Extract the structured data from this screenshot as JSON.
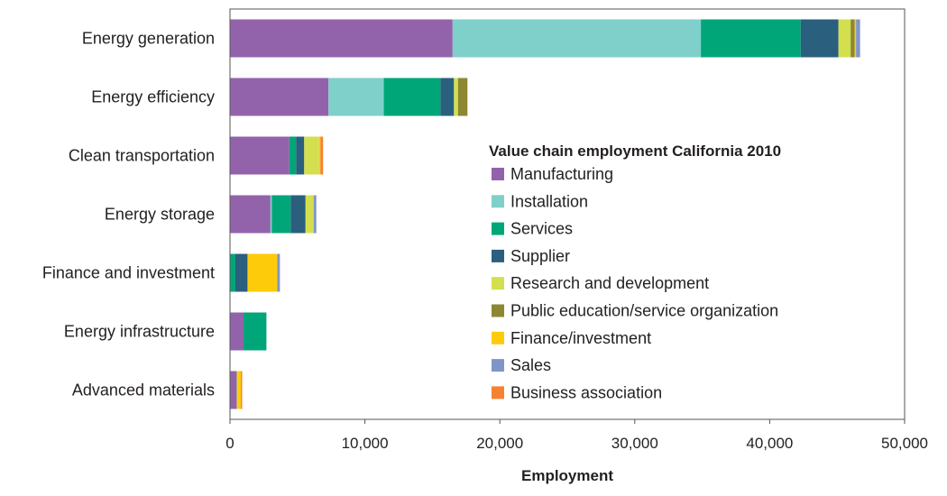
{
  "chart_data": {
    "type": "bar",
    "orientation": "horizontal",
    "stacked": true,
    "categories": [
      "Energy generation",
      "Energy efficiency",
      "Clean transportation",
      "Energy storage",
      "Finance and investment",
      "Energy infrastructure",
      "Advanced materials"
    ],
    "series": [
      {
        "name": "Manufacturing",
        "color": "#9263ab",
        "values": [
          16500,
          7300,
          4400,
          3000,
          0,
          1000,
          500
        ]
      },
      {
        "name": "Installation",
        "color": "#7fcfca",
        "values": [
          18400,
          4100,
          0,
          100,
          0,
          0,
          0
        ]
      },
      {
        "name": "Services",
        "color": "#00a678",
        "values": [
          7400,
          4200,
          500,
          1400,
          400,
          1700,
          0
        ]
      },
      {
        "name": "Supplier",
        "color": "#2b5f7e",
        "values": [
          2800,
          1000,
          600,
          1100,
          900,
          0,
          0
        ]
      },
      {
        "name": "Research and development",
        "color": "#d3df4e",
        "values": [
          900,
          300,
          1100,
          600,
          0,
          0,
          100
        ]
      },
      {
        "name": "Public education/service organization",
        "color": "#8d8732",
        "values": [
          300,
          700,
          0,
          0,
          0,
          0,
          0
        ]
      },
      {
        "name": "Finance/investment",
        "color": "#fdcb0a",
        "values": [
          100,
          0,
          100,
          0,
          2200,
          0,
          200
        ]
      },
      {
        "name": "Sales",
        "color": "#7f96c8",
        "values": [
          300,
          0,
          0,
          200,
          200,
          0,
          0
        ]
      },
      {
        "name": "Business association",
        "color": "#f58231",
        "values": [
          0,
          0,
          200,
          0,
          0,
          0,
          100
        ]
      }
    ],
    "title": "",
    "legend_title": "Value chain employment California 2010",
    "legend_position": "right-center",
    "xlabel": "Employment",
    "ylabel": "",
    "xlim": [
      0,
      50000
    ],
    "xticks": [
      "0",
      "10,000",
      "20,000",
      "30,000",
      "40,000",
      "50,000"
    ],
    "grid": false
  }
}
